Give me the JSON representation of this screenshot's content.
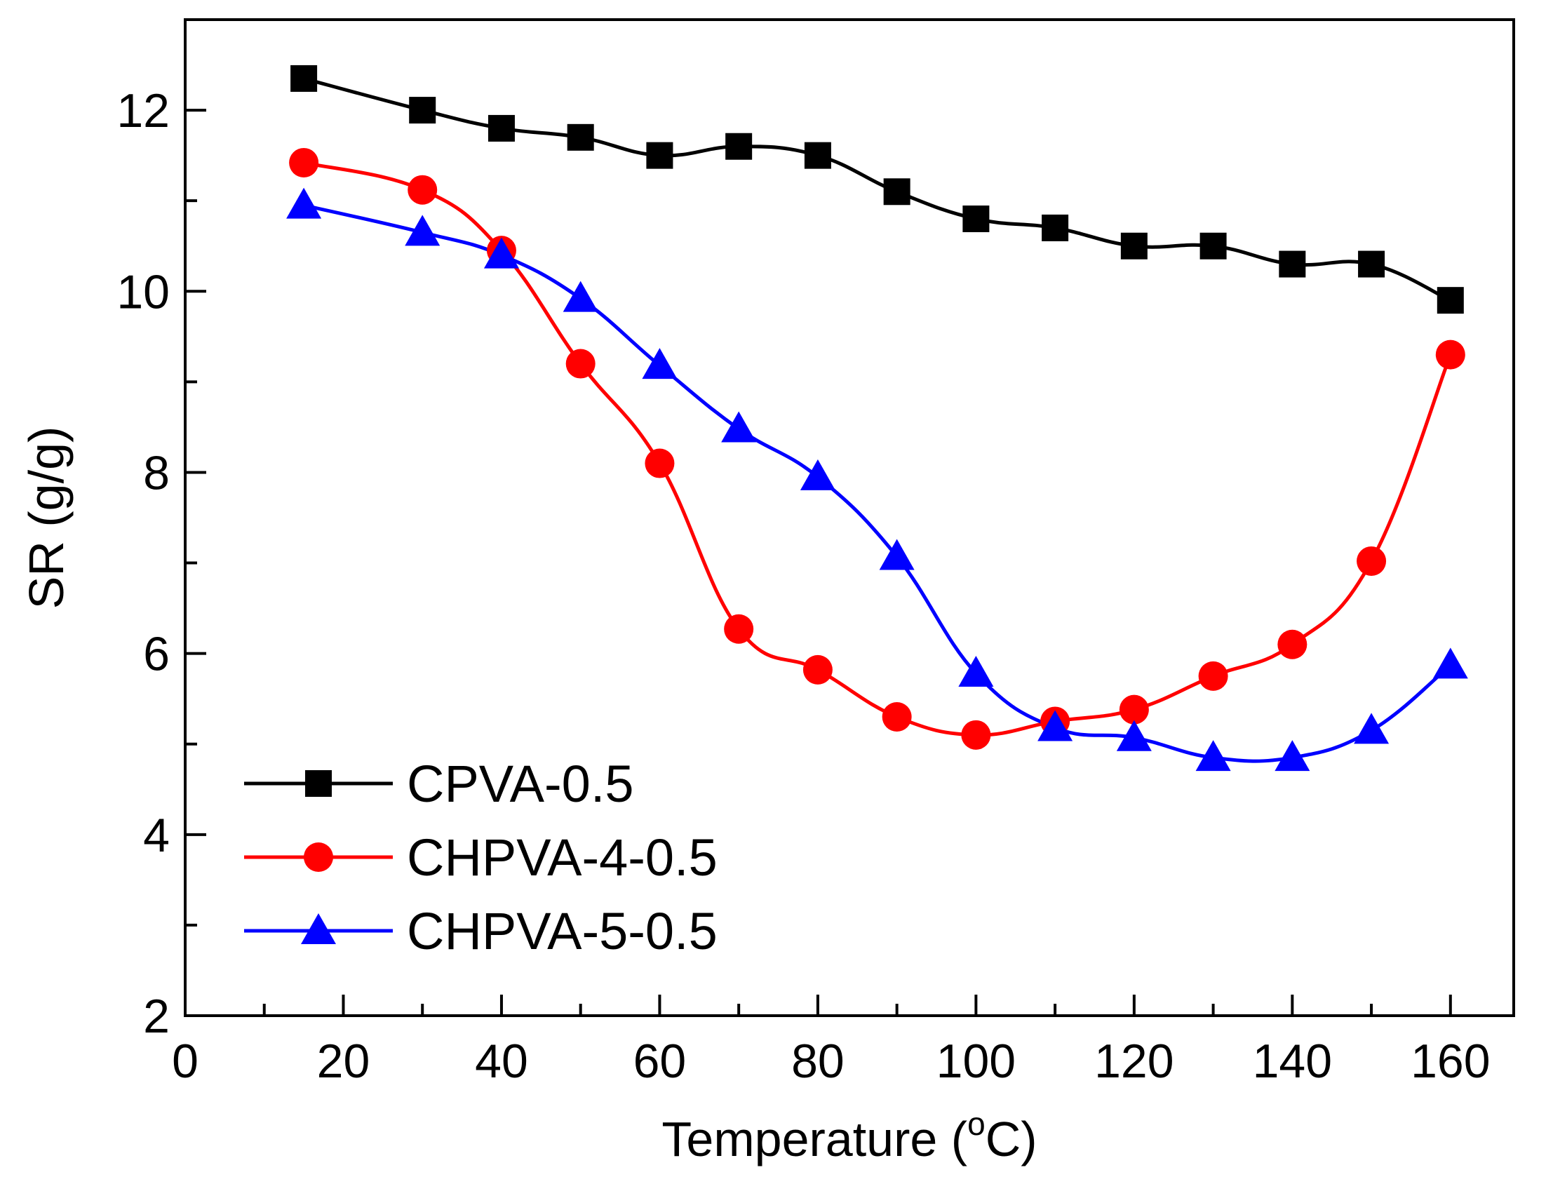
{
  "chart_data": {
    "type": "line",
    "title": "",
    "xlabel": "Temperature (",
    "xlabel_sup": "o",
    "xlabel_suffix": "C)",
    "ylabel": "SR (g/g)",
    "xlim": [
      0,
      168
    ],
    "ylim": [
      2,
      13
    ],
    "x_ticks": [
      0,
      20,
      40,
      60,
      80,
      100,
      120,
      140,
      160
    ],
    "x_tick_labels": [
      "0",
      "20",
      "40",
      "60",
      "80",
      "100",
      "120",
      "140",
      "160"
    ],
    "x_minor_ticks": [
      10,
      30,
      50,
      70,
      90,
      110,
      130,
      150
    ],
    "y_ticks": [
      2,
      4,
      6,
      8,
      10,
      12
    ],
    "y_tick_labels": [
      "2",
      "4",
      "6",
      "8",
      "10",
      "12"
    ],
    "y_minor_ticks": [
      3,
      5,
      7,
      9,
      11
    ],
    "grid": false,
    "legend_position": "bottom-left",
    "x": [
      15,
      30,
      40,
      50,
      60,
      70,
      80,
      90,
      100,
      110,
      120,
      130,
      140,
      150,
      160
    ],
    "series": [
      {
        "name": "CPVA-0.5",
        "color": "#000000",
        "marker": "square",
        "values": [
          12.35,
          12.0,
          11.8,
          11.7,
          11.5,
          11.6,
          11.5,
          11.1,
          10.8,
          10.7,
          10.5,
          10.5,
          10.3,
          10.3,
          9.9
        ]
      },
      {
        "name": "CHPVA-4-0.5",
        "color": "#ff0000",
        "marker": "circle",
        "values": [
          11.42,
          11.12,
          10.45,
          9.2,
          8.1,
          6.27,
          5.82,
          5.3,
          5.1,
          5.25,
          5.38,
          5.75,
          6.1,
          7.02,
          9.3
        ]
      },
      {
        "name": "CHPVA-5-0.5",
        "color": "#0000ff",
        "marker": "triangle",
        "values": [
          10.95,
          10.65,
          10.4,
          9.92,
          9.18,
          8.48,
          7.95,
          7.07,
          5.78,
          5.18,
          5.07,
          4.85,
          4.85,
          5.15,
          5.87
        ]
      }
    ]
  }
}
